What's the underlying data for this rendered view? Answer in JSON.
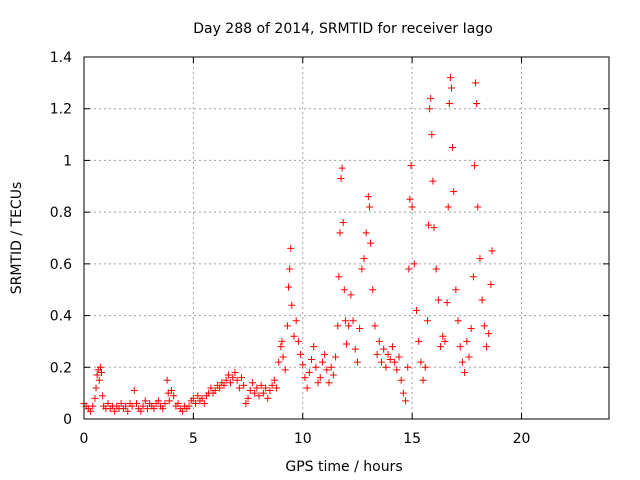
{
  "chart_data": {
    "type": "scatter",
    "title": "Day 288 of 2014, SRMTID for receiver Iago",
    "xlabel": "GPS time / hours",
    "ylabel": "SRMTID / TECUs",
    "xlim": [
      0,
      24
    ],
    "ylim": [
      0,
      1.4
    ],
    "xticks": [
      0,
      5,
      10,
      15,
      20
    ],
    "xtick_labels": [
      "0",
      "5",
      "10",
      "15",
      "20"
    ],
    "yticks": [
      0,
      0.2,
      0.4,
      0.6,
      0.8,
      1.0,
      1.2,
      1.4
    ],
    "ytick_labels": [
      "0",
      "0.2",
      "0.4",
      "0.6",
      "0.8",
      "1",
      "1.2",
      "1.4"
    ],
    "grid": true,
    "marker": "+",
    "marker_color": "#ff0000",
    "series": [
      {
        "name": "SRMTID",
        "points": [
          [
            0.0,
            0.06
          ],
          [
            0.1,
            0.05
          ],
          [
            0.2,
            0.04
          ],
          [
            0.3,
            0.03
          ],
          [
            0.4,
            0.05
          ],
          [
            0.5,
            0.08
          ],
          [
            0.55,
            0.12
          ],
          [
            0.6,
            0.17
          ],
          [
            0.65,
            0.19
          ],
          [
            0.7,
            0.15
          ],
          [
            0.75,
            0.2
          ],
          [
            0.8,
            0.18
          ],
          [
            0.85,
            0.09
          ],
          [
            0.9,
            0.05
          ],
          [
            1.0,
            0.04
          ],
          [
            1.1,
            0.06
          ],
          [
            1.2,
            0.04
          ],
          [
            1.3,
            0.05
          ],
          [
            1.4,
            0.03
          ],
          [
            1.5,
            0.05
          ],
          [
            1.6,
            0.04
          ],
          [
            1.7,
            0.06
          ],
          [
            1.8,
            0.04
          ],
          [
            1.9,
            0.05
          ],
          [
            2.0,
            0.03
          ],
          [
            2.1,
            0.06
          ],
          [
            2.2,
            0.05
          ],
          [
            2.3,
            0.11
          ],
          [
            2.4,
            0.06
          ],
          [
            2.5,
            0.04
          ],
          [
            2.6,
            0.03
          ],
          [
            2.7,
            0.05
          ],
          [
            2.8,
            0.07
          ],
          [
            2.9,
            0.04
          ],
          [
            3.0,
            0.06
          ],
          [
            3.1,
            0.05
          ],
          [
            3.2,
            0.04
          ],
          [
            3.3,
            0.06
          ],
          [
            3.4,
            0.07
          ],
          [
            3.5,
            0.05
          ],
          [
            3.6,
            0.04
          ],
          [
            3.7,
            0.06
          ],
          [
            3.8,
            0.15
          ],
          [
            3.85,
            0.1
          ],
          [
            3.9,
            0.07
          ],
          [
            4.0,
            0.11
          ],
          [
            4.1,
            0.09
          ],
          [
            4.2,
            0.05
          ],
          [
            4.3,
            0.06
          ],
          [
            4.4,
            0.04
          ],
          [
            4.5,
            0.03
          ],
          [
            4.6,
            0.05
          ],
          [
            4.7,
            0.04
          ],
          [
            4.8,
            0.05
          ],
          [
            4.9,
            0.07
          ],
          [
            5.0,
            0.08
          ],
          [
            5.1,
            0.06
          ],
          [
            5.2,
            0.09
          ],
          [
            5.3,
            0.07
          ],
          [
            5.4,
            0.08
          ],
          [
            5.5,
            0.06
          ],
          [
            5.6,
            0.09
          ],
          [
            5.7,
            0.1
          ],
          [
            5.8,
            0.12
          ],
          [
            5.9,
            0.1
          ],
          [
            6.0,
            0.11
          ],
          [
            6.1,
            0.13
          ],
          [
            6.2,
            0.12
          ],
          [
            6.3,
            0.14
          ],
          [
            6.4,
            0.13
          ],
          [
            6.5,
            0.15
          ],
          [
            6.6,
            0.17
          ],
          [
            6.7,
            0.14
          ],
          [
            6.8,
            0.16
          ],
          [
            6.9,
            0.18
          ],
          [
            7.0,
            0.15
          ],
          [
            7.1,
            0.12
          ],
          [
            7.2,
            0.16
          ],
          [
            7.3,
            0.13
          ],
          [
            7.4,
            0.06
          ],
          [
            7.5,
            0.08
          ],
          [
            7.6,
            0.11
          ],
          [
            7.7,
            0.14
          ],
          [
            7.8,
            0.1
          ],
          [
            7.9,
            0.12
          ],
          [
            8.0,
            0.09
          ],
          [
            8.1,
            0.13
          ],
          [
            8.2,
            0.1
          ],
          [
            8.3,
            0.12
          ],
          [
            8.4,
            0.08
          ],
          [
            8.5,
            0.11
          ],
          [
            8.6,
            0.13
          ],
          [
            8.7,
            0.15
          ],
          [
            8.8,
            0.12
          ],
          [
            8.9,
            0.22
          ],
          [
            9.0,
            0.28
          ],
          [
            9.05,
            0.3
          ],
          [
            9.1,
            0.24
          ],
          [
            9.2,
            0.19
          ],
          [
            9.3,
            0.36
          ],
          [
            9.35,
            0.51
          ],
          [
            9.4,
            0.58
          ],
          [
            9.45,
            0.66
          ],
          [
            9.5,
            0.44
          ],
          [
            9.6,
            0.32
          ],
          [
            9.7,
            0.38
          ],
          [
            9.8,
            0.3
          ],
          [
            9.9,
            0.25
          ],
          [
            10.0,
            0.21
          ],
          [
            10.1,
            0.16
          ],
          [
            10.2,
            0.12
          ],
          [
            10.3,
            0.18
          ],
          [
            10.4,
            0.23
          ],
          [
            10.5,
            0.28
          ],
          [
            10.6,
            0.2
          ],
          [
            10.7,
            0.14
          ],
          [
            10.8,
            0.16
          ],
          [
            10.9,
            0.22
          ],
          [
            11.0,
            0.25
          ],
          [
            11.1,
            0.19
          ],
          [
            11.2,
            0.14
          ],
          [
            11.3,
            0.2
          ],
          [
            11.4,
            0.17
          ],
          [
            11.5,
            0.24
          ],
          [
            11.6,
            0.36
          ],
          [
            11.65,
            0.55
          ],
          [
            11.7,
            0.72
          ],
          [
            11.75,
            0.93
          ],
          [
            11.8,
            0.97
          ],
          [
            11.85,
            0.76
          ],
          [
            11.9,
            0.5
          ],
          [
            11.95,
            0.38
          ],
          [
            12.0,
            0.29
          ],
          [
            12.1,
            0.36
          ],
          [
            12.2,
            0.48
          ],
          [
            12.3,
            0.38
          ],
          [
            12.4,
            0.27
          ],
          [
            12.5,
            0.22
          ],
          [
            12.6,
            0.35
          ],
          [
            12.7,
            0.58
          ],
          [
            12.8,
            0.62
          ],
          [
            12.9,
            0.72
          ],
          [
            13.0,
            0.86
          ],
          [
            13.05,
            0.82
          ],
          [
            13.1,
            0.68
          ],
          [
            13.2,
            0.5
          ],
          [
            13.3,
            0.36
          ],
          [
            13.4,
            0.25
          ],
          [
            13.5,
            0.3
          ],
          [
            13.6,
            0.22
          ],
          [
            13.7,
            0.27
          ],
          [
            13.8,
            0.2
          ],
          [
            13.9,
            0.25
          ],
          [
            14.0,
            0.23
          ],
          [
            14.1,
            0.28
          ],
          [
            14.2,
            0.22
          ],
          [
            14.3,
            0.19
          ],
          [
            14.4,
            0.24
          ],
          [
            14.5,
            0.15
          ],
          [
            14.6,
            0.1
          ],
          [
            14.7,
            0.07
          ],
          [
            14.8,
            0.2
          ],
          [
            14.85,
            0.58
          ],
          [
            14.9,
            0.85
          ],
          [
            14.95,
            0.98
          ],
          [
            15.0,
            0.82
          ],
          [
            15.1,
            0.6
          ],
          [
            15.2,
            0.42
          ],
          [
            15.3,
            0.3
          ],
          [
            15.4,
            0.22
          ],
          [
            15.5,
            0.15
          ],
          [
            15.6,
            0.2
          ],
          [
            15.7,
            0.38
          ],
          [
            15.75,
            0.75
          ],
          [
            15.8,
            1.2
          ],
          [
            15.85,
            1.24
          ],
          [
            15.9,
            1.1
          ],
          [
            15.95,
            0.92
          ],
          [
            16.0,
            0.74
          ],
          [
            16.1,
            0.58
          ],
          [
            16.2,
            0.46
          ],
          [
            16.3,
            0.28
          ],
          [
            16.4,
            0.32
          ],
          [
            16.5,
            0.3
          ],
          [
            16.6,
            0.45
          ],
          [
            16.65,
            0.82
          ],
          [
            16.7,
            1.22
          ],
          [
            16.75,
            1.32
          ],
          [
            16.8,
            1.28
          ],
          [
            16.85,
            1.05
          ],
          [
            16.9,
            0.88
          ],
          [
            17.0,
            0.5
          ],
          [
            17.1,
            0.38
          ],
          [
            17.2,
            0.28
          ],
          [
            17.3,
            0.22
          ],
          [
            17.4,
            0.18
          ],
          [
            17.5,
            0.3
          ],
          [
            17.6,
            0.24
          ],
          [
            17.7,
            0.35
          ],
          [
            17.8,
            0.55
          ],
          [
            17.85,
            0.98
          ],
          [
            17.9,
            1.3
          ],
          [
            17.95,
            1.22
          ],
          [
            18.0,
            0.82
          ],
          [
            18.1,
            0.62
          ],
          [
            18.2,
            0.46
          ],
          [
            18.3,
            0.36
          ],
          [
            18.4,
            0.28
          ],
          [
            18.5,
            0.33
          ],
          [
            18.6,
            0.52
          ],
          [
            18.65,
            0.65
          ]
        ]
      }
    ]
  }
}
